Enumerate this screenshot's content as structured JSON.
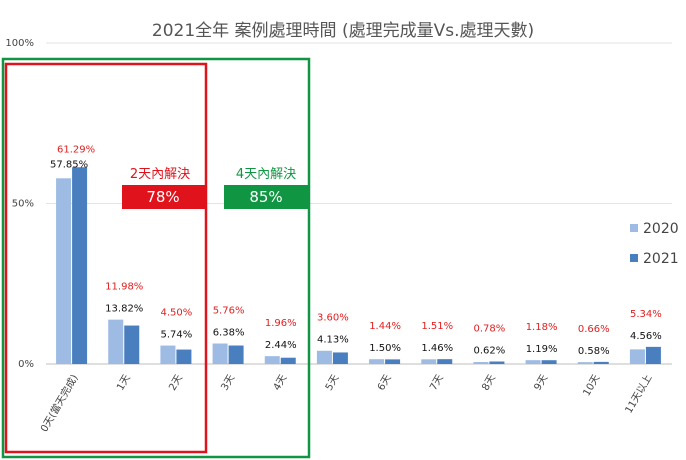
{
  "chart_data": {
    "type": "bar",
    "title": "2021全年 案例處理時間 (處理完成量Vs.處理天數)",
    "categories": [
      "0天(當天完成)",
      "1天",
      "2天",
      "3天",
      "4天",
      "5天",
      "6天",
      "7天",
      "8天",
      "9天",
      "10天",
      "11天以上"
    ],
    "series": [
      {
        "name": "2020",
        "color": "#9dbbe3",
        "values": [
          57.85,
          13.82,
          5.74,
          6.38,
          2.44,
          4.13,
          1.5,
          1.46,
          0.62,
          1.19,
          0.58,
          4.56
        ],
        "labels": [
          "57.85%",
          "13.82%",
          "5.74%",
          "6.38%",
          "2.44%",
          "4.13%",
          "1.50%",
          "1.46%",
          "0.62%",
          "1.19%",
          "0.58%",
          "4.56%"
        ]
      },
      {
        "name": "2021",
        "color": "#4a7fbf",
        "values": [
          61.29,
          11.98,
          4.5,
          5.76,
          1.96,
          3.6,
          1.44,
          1.51,
          0.78,
          1.18,
          0.66,
          5.34
        ],
        "labels": [
          "61.29%",
          "11.98%",
          "4.50%",
          "5.76%",
          "1.96%",
          "3.60%",
          "1.44%",
          "1.51%",
          "0.78%",
          "1.18%",
          "0.66%",
          "5.34%"
        ]
      }
    ],
    "ylim": [
      0,
      100
    ],
    "yticks": [
      "0%",
      "50%",
      "100%"
    ],
    "grid": true,
    "legend": "right",
    "annotations": [
      {
        "label": "2天內解決",
        "value": "78%",
        "color": "#e0121b"
      },
      {
        "label": "4天內解決",
        "value": "85%",
        "color": "#109642"
      }
    ]
  }
}
